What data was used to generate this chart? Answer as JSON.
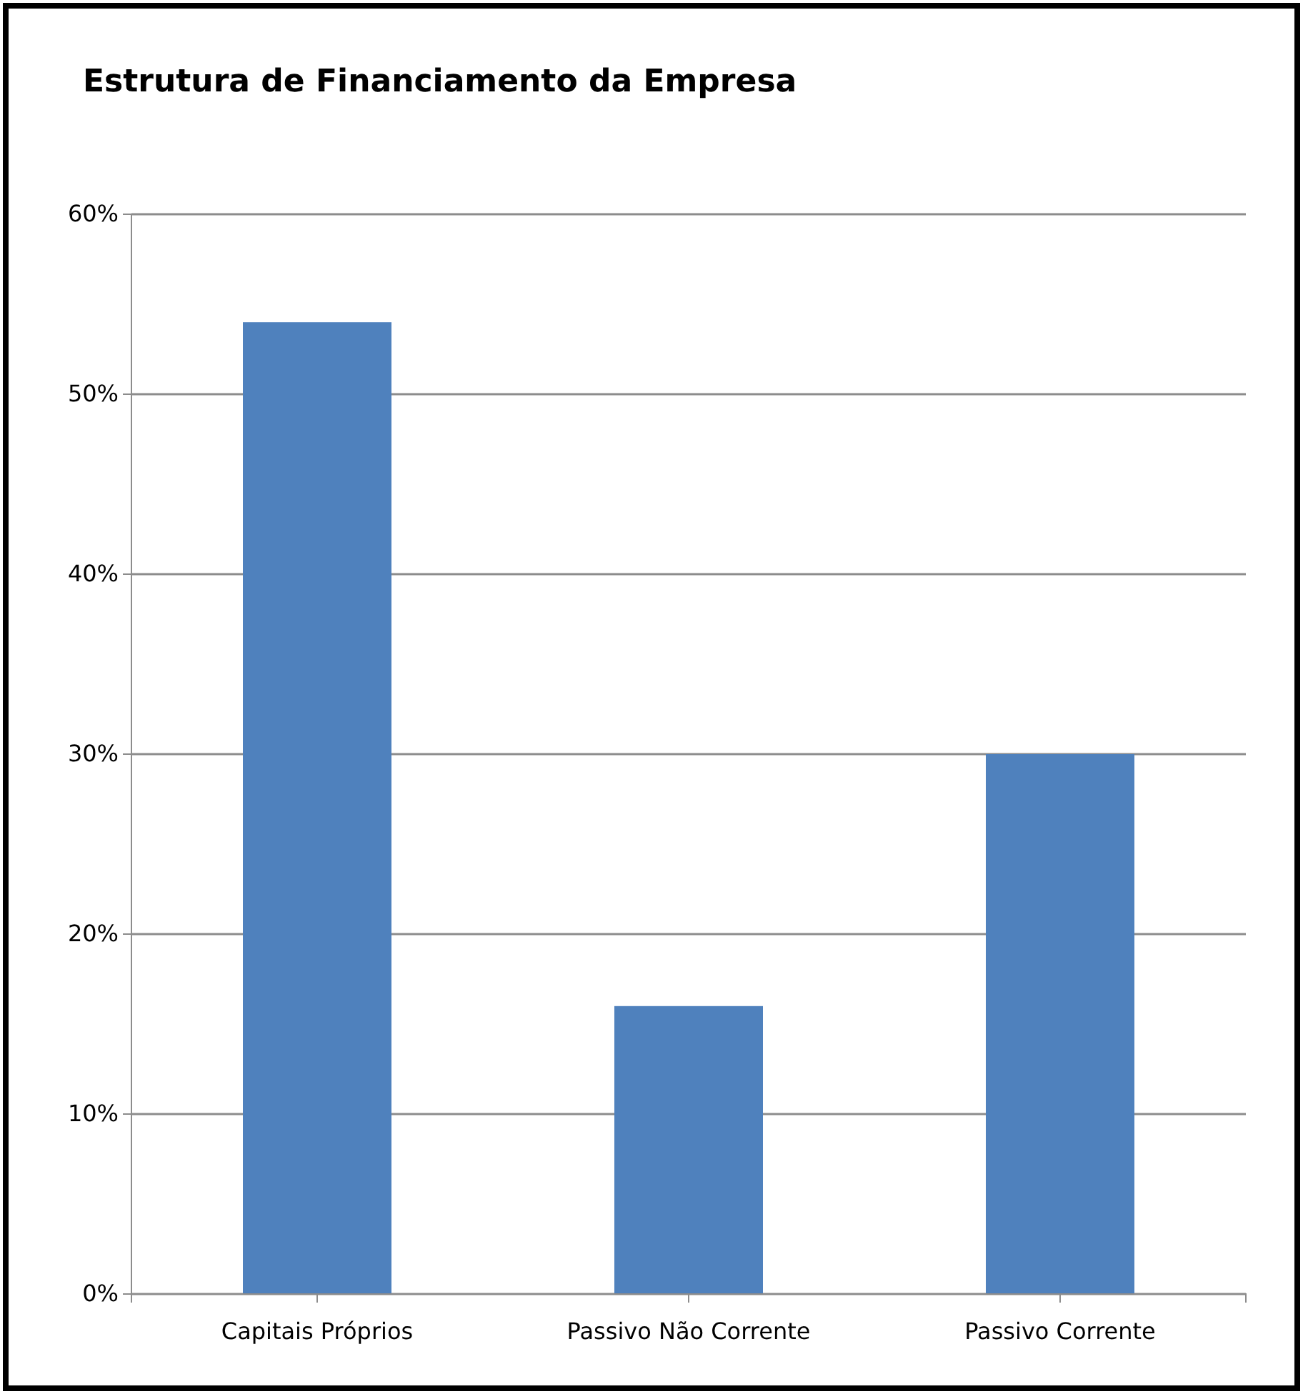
{
  "chart_data": {
    "type": "bar",
    "title": "Estrutura de Financiamento da Empresa",
    "categories": [
      "Capitais Próprios",
      "Passivo Não Corrente",
      "Passivo Corrente"
    ],
    "values": [
      54,
      16,
      30
    ],
    "color": "#4f81bd",
    "ylim": [
      0,
      60
    ],
    "yticks": [
      {
        "value": 0,
        "label": "0%"
      },
      {
        "value": 10,
        "label": "10%"
      },
      {
        "value": 20,
        "label": "20%"
      },
      {
        "value": 30,
        "label": "30%"
      },
      {
        "value": 40,
        "label": "40%"
      },
      {
        "value": 50,
        "label": "50%"
      },
      {
        "value": 60,
        "label": "60%"
      }
    ],
    "grid": "y"
  }
}
